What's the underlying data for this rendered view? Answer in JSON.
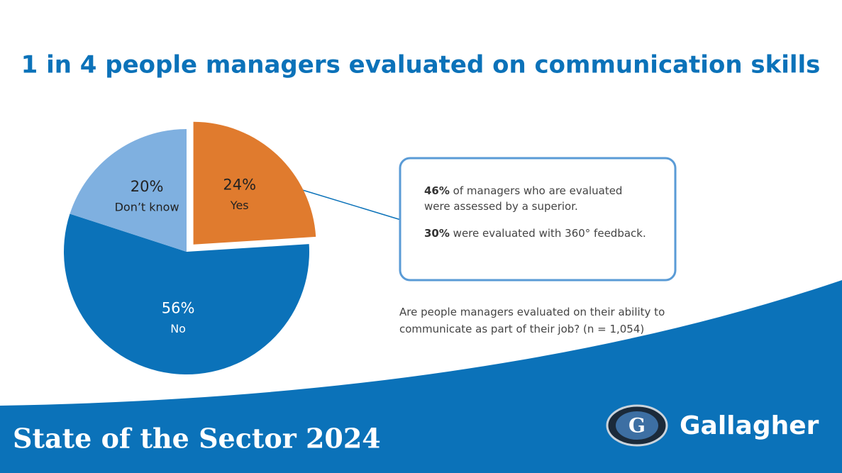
{
  "chart_data": {
    "type": "pie",
    "title": "1 in 4 people managers evaluated on communication skills",
    "categories": [
      "Yes",
      "No",
      "Don’t know"
    ],
    "values": [
      24,
      56,
      20
    ],
    "value_labels": [
      "24%",
      "56%",
      "20%"
    ],
    "colors": [
      "#e07b2e",
      "#0b72b9",
      "#7fb0e0"
    ],
    "explode": [
      true,
      false,
      false
    ],
    "callout": [
      {
        "bold": "46%",
        "text": " of managers who are evaluated were assessed by a superior."
      },
      {
        "bold": "30%",
        "text": " were evaluated with 360° feedback."
      }
    ],
    "note": "Are people managers evaluated on their ability to communicate as part of their job? (n = 1,054)"
  },
  "footer": {
    "title": "State of the Sector 2024",
    "brand": "Gallagher"
  }
}
